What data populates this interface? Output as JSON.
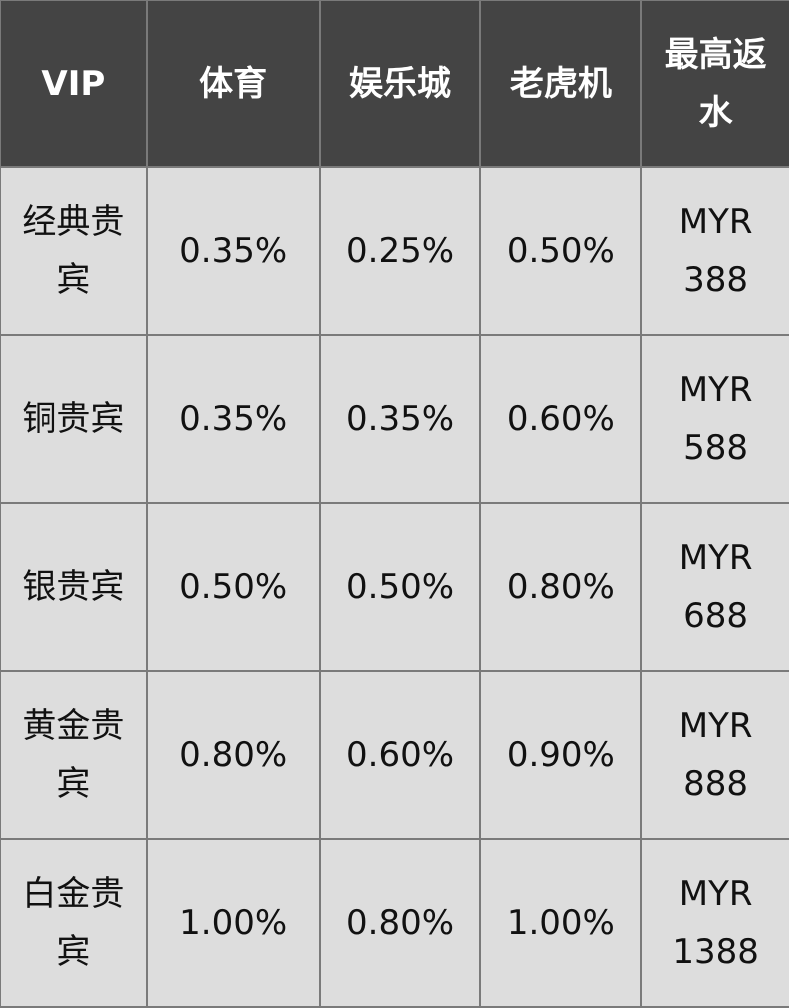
{
  "headers": [
    "VIP",
    "体育",
    "娱乐城",
    "老虎机",
    "最高返水"
  ],
  "rows": [
    [
      "经典贵宾",
      "0.35%",
      "0.25%",
      "0.50%",
      "MYR 388"
    ],
    [
      "铜贵宾",
      "0.35%",
      "0.35%",
      "0.60%",
      "MYR 588"
    ],
    [
      "银贵宾",
      "0.50%",
      "0.50%",
      "0.80%",
      "MYR 688"
    ],
    [
      "黄金贵宾",
      "0.80%",
      "0.60%",
      "0.90%",
      "MYR 888"
    ],
    [
      "白金贵宾",
      "1.00%",
      "0.80%",
      "1.00%",
      "MYR 1388"
    ]
  ],
  "colors": {
    "header_bg": "#444444",
    "cell_bg": "#dddddd",
    "border": "#7a7a7a"
  }
}
